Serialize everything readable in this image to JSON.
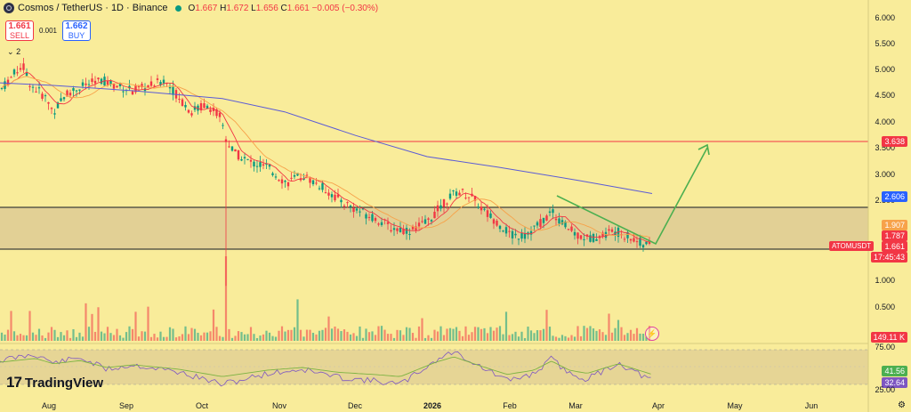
{
  "header": {
    "symbol_title": "Cosmos / TetherUS · 1D · Binance",
    "ohlc": {
      "o_label": "O",
      "o": "1.667",
      "h_label": "H",
      "h": "1.672",
      "l_label": "L",
      "l": "1.656",
      "c_label": "C",
      "c": "1.661",
      "change": "−0.005 (−0.30%)"
    }
  },
  "trade": {
    "sell_price": "1.661",
    "sell_label": "SELL",
    "spread": "0.001",
    "buy_price": "1.662",
    "buy_label": "BUY"
  },
  "indicators_toggle": "2",
  "price_axis": [
    "6.000",
    "5.500",
    "5.000",
    "4.500",
    "4.000",
    "3.500",
    "3.000",
    "2.500",
    "1.000",
    "0.500"
  ],
  "price_tags": {
    "resistance": "3.638",
    "ma_slow": "2.606",
    "ma_mid": "1.907",
    "ma_fast": "1.787",
    "last_price": "1.661",
    "countdown": "17:45:43",
    "symbol": "ATOMUSDT",
    "volume": "149.11 K",
    "rsi_ma": "41.56",
    "rsi": "32.64"
  },
  "rsi_axis": [
    "75.00",
    "25.00"
  ],
  "time_axis": [
    "Aug",
    "Sep",
    "Oct",
    "Nov",
    "Dec",
    "2026",
    "Feb",
    "Mar",
    "Apr",
    "May",
    "Jun"
  ],
  "logo_text": "TradingView",
  "colors": {
    "background": "#f9ec9a",
    "up": "#089981",
    "down": "#f23645",
    "zone": "#d9c793",
    "ma_slow": "#5b5bd6",
    "ma_mid": "#f7a24a",
    "ma_fast": "#f23645",
    "arrow": "#4caf50",
    "rsi": "#7e57c2",
    "rsi_ma": "#7cb342"
  }
}
